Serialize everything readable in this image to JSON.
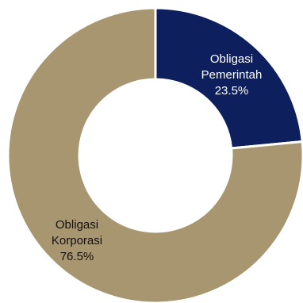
{
  "chart_data": {
    "type": "pie",
    "donut": true,
    "legend": "none",
    "categories": [
      "Obligasi Pemerintah",
      "Obligasi Korporasi"
    ],
    "values": [
      23.5,
      76.5
    ],
    "series": [
      {
        "name_lines": [
          "Obligasi",
          "Pemerintah"
        ],
        "value": 23.5,
        "value_label": "23.5%",
        "color": "#0d1f5c",
        "label_color": "#ffffff"
      },
      {
        "name_lines": [
          "Obligasi",
          "Korporasi"
        ],
        "value": 76.5,
        "value_label": "76.5%",
        "color": "#a89670",
        "label_color": "#111111"
      }
    ]
  }
}
